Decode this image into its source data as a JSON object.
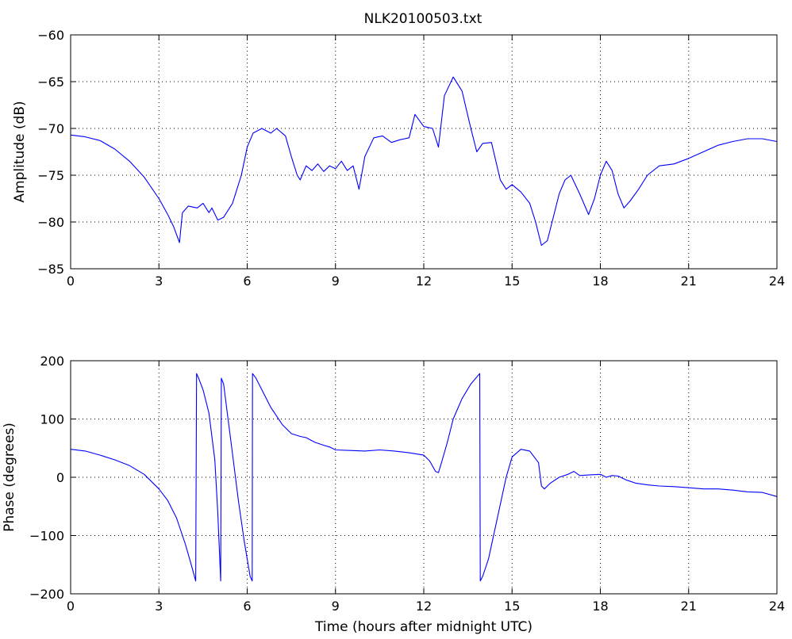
{
  "title": "NLK20100503.txt",
  "colors": {
    "line": "#0000ff",
    "axes": "#000000",
    "grid": "#000000",
    "background": "#ffffff"
  },
  "chart_data": [
    {
      "type": "line",
      "title": "NLK20100503.txt",
      "xlabel": "",
      "ylabel": "Amplitude (dB)",
      "xlim": [
        0,
        24
      ],
      "ylim": [
        -85,
        -60
      ],
      "xticks": [
        0,
        3,
        6,
        9,
        12,
        15,
        18,
        21,
        24
      ],
      "yticks": [
        -85,
        -80,
        -75,
        -70,
        -65,
        -60
      ],
      "xtick_labels": [
        "0",
        "3",
        "6",
        "9",
        "12",
        "15",
        "18",
        "21",
        "24"
      ],
      "ytick_labels": [
        "−85",
        "−80",
        "−75",
        "−70",
        "−65",
        "−60"
      ],
      "grid": true,
      "series": [
        {
          "x": [
            0,
            0.5,
            1,
            1.5,
            2,
            2.5,
            3,
            3.3,
            3.5,
            3.7,
            3.75,
            3.8,
            4,
            4.3,
            4.5,
            4.7,
            4.8,
            5,
            5.2,
            5.5,
            5.8,
            6,
            6.2,
            6.5,
            6.8,
            7,
            7.3,
            7.5,
            7.7,
            7.8,
            8,
            8.2,
            8.4,
            8.6,
            8.8,
            9,
            9.2,
            9.4,
            9.6,
            9.8,
            10,
            10.3,
            10.6,
            10.9,
            11.2,
            11.5,
            11.7,
            12,
            12.3,
            12.5,
            12.7,
            13,
            13.3,
            13.6,
            13.8,
            14,
            14.3,
            14.6,
            14.8,
            15,
            15.3,
            15.6,
            15.8,
            16,
            16.2,
            16.4,
            16.6,
            16.8,
            17,
            17.3,
            17.6,
            17.8,
            18,
            18.2,
            18.4,
            18.6,
            18.8,
            19,
            19.3,
            19.6,
            20,
            20.5,
            21,
            21.5,
            22,
            22.5,
            23,
            23.5,
            24
          ],
          "y": [
            -70.7,
            -70.9,
            -71.3,
            -72.2,
            -73.5,
            -75.2,
            -77.5,
            -79.2,
            -80.5,
            -82.2,
            -80.5,
            -79.0,
            -78.3,
            -78.5,
            -78.0,
            -79.0,
            -78.5,
            -79.8,
            -79.5,
            -78.0,
            -75.0,
            -72.0,
            -70.5,
            -70.0,
            -70.5,
            -70.0,
            -70.8,
            -73.0,
            -75.0,
            -75.5,
            -74.0,
            -74.5,
            -73.8,
            -74.6,
            -74.0,
            -74.3,
            -73.5,
            -74.5,
            -74.0,
            -76.5,
            -73.0,
            -71.0,
            -70.8,
            -71.5,
            -71.2,
            -71.0,
            -68.5,
            -69.8,
            -70.0,
            -72.0,
            -66.5,
            -64.5,
            -66.0,
            -70.0,
            -72.5,
            -71.6,
            -71.5,
            -75.5,
            -76.5,
            -76.0,
            -76.8,
            -78.0,
            -80.0,
            -82.5,
            -82.0,
            -79.5,
            -77.0,
            -75.5,
            -75.0,
            -77.0,
            -79.2,
            -77.5,
            -75.0,
            -73.5,
            -74.5,
            -77.0,
            -78.5,
            -77.8,
            -76.5,
            -75.0,
            -74.0,
            -73.8,
            -73.2,
            -72.5,
            -71.8,
            -71.4,
            -71.1,
            -71.1,
            -71.4
          ]
        }
      ]
    },
    {
      "type": "line",
      "title": "",
      "xlabel": "Time (hours after midnight UTC)",
      "ylabel": "Phase (degrees)",
      "xlim": [
        0,
        24
      ],
      "ylim": [
        -200,
        200
      ],
      "xticks": [
        0,
        3,
        6,
        9,
        12,
        15,
        18,
        21,
        24
      ],
      "yticks": [
        -200,
        -100,
        0,
        100,
        200
      ],
      "xtick_labels": [
        "0",
        "3",
        "6",
        "9",
        "12",
        "15",
        "18",
        "21",
        "24"
      ],
      "ytick_labels": [
        "−200",
        "−100",
        "0",
        "100",
        "200"
      ],
      "grid": true,
      "series": [
        {
          "x": [
            0,
            0.5,
            1,
            1.5,
            2,
            2.5,
            3,
            3.3,
            3.6,
            3.9,
            4.1,
            4.25,
            4.28,
            4.35,
            4.5,
            4.7,
            4.9,
            5.0,
            5.1,
            5.12,
            5.2,
            5.3,
            5.5,
            5.7,
            5.9,
            6.1,
            6.17,
            6.18,
            6.3,
            6.5,
            6.8,
            7.0,
            7.2,
            7.5,
            7.8,
            8.0,
            8.3,
            8.6,
            8.8,
            9.0,
            9.5,
            10.0,
            10.5,
            11.0,
            11.5,
            12.0,
            12.2,
            12.4,
            12.5,
            12.6,
            12.8,
            13.0,
            13.3,
            13.6,
            13.9,
            13.92,
            14.0,
            14.2,
            14.5,
            14.8,
            15.0,
            15.3,
            15.6,
            15.9,
            16.0,
            16.1,
            16.3,
            16.6,
            16.9,
            17.1,
            17.3,
            17.6,
            18.0,
            18.2,
            18.4,
            18.6,
            18.9,
            19.2,
            19.6,
            20.0,
            20.5,
            21.0,
            21.5,
            22.0,
            22.5,
            23.0,
            23.5,
            24.0
          ],
          "y": [
            48,
            45,
            38,
            30,
            20,
            5,
            -20,
            -40,
            -70,
            -115,
            -150,
            -178,
            178,
            170,
            150,
            110,
            30,
            -60,
            -178,
            170,
            160,
            120,
            40,
            -40,
            -110,
            -170,
            -178,
            178,
            170,
            150,
            120,
            105,
            90,
            75,
            70,
            68,
            60,
            55,
            52,
            47,
            46,
            45,
            47,
            45,
            42,
            38,
            28,
            10,
            8,
            25,
            60,
            100,
            135,
            160,
            178,
            -178,
            -170,
            -140,
            -70,
            0,
            35,
            48,
            45,
            25,
            -15,
            -20,
            -10,
            0,
            5,
            10,
            3,
            4,
            5,
            0,
            3,
            2,
            -5,
            -10,
            -13,
            -15,
            -16,
            -18,
            -20,
            -20,
            -22,
            -25,
            -26,
            -33
          ]
        }
      ]
    }
  ]
}
